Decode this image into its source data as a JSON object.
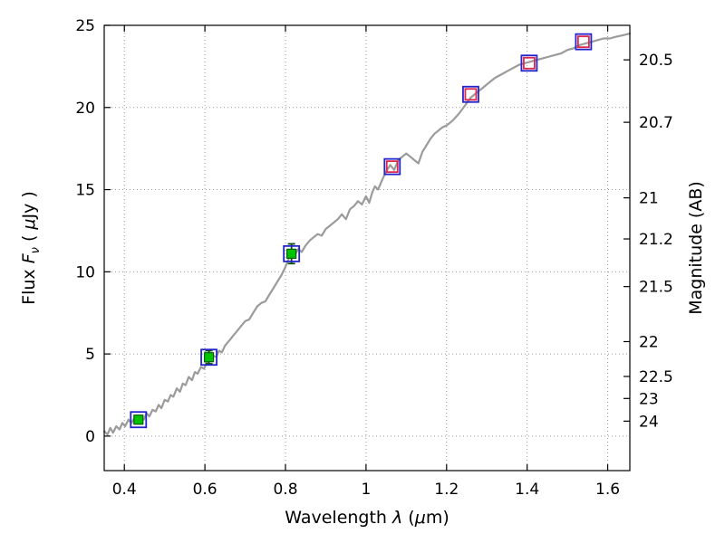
{
  "chart_data": {
    "type": "line",
    "title": "",
    "xlabel": "Wavelength λ (μm)",
    "xlabel_parts": [
      {
        "t": "Wavelength  ",
        "s": "n"
      },
      {
        "t": "λ",
        "s": "i"
      },
      {
        "t": " (",
        "s": "n"
      },
      {
        "t": "μ",
        "s": "i"
      },
      {
        "t": "m)",
        "s": "n"
      }
    ],
    "ylabel_left": "Flux Fν ( μJy )",
    "ylabel_left_parts": [
      {
        "t": "Flux  ",
        "s": "n"
      },
      {
        "t": "F",
        "s": "i"
      },
      {
        "t": "ν",
        "s": "sub"
      },
      {
        "t": "  ( ",
        "s": "n"
      },
      {
        "t": "μ",
        "s": "i"
      },
      {
        "t": "Jy )",
        "s": "n"
      }
    ],
    "ylabel_right": "Magnitude (AB)",
    "ylabel_right_parts": [
      {
        "t": "Magnitude (AB)",
        "s": "n"
      }
    ],
    "xlim": [
      0.35,
      1.655
    ],
    "ylim": [
      -2.1,
      25
    ],
    "grid": "dotted",
    "x_ticks": [
      0.4,
      0.6,
      0.8,
      1.0,
      1.2,
      1.4,
      1.6
    ],
    "x_tick_labels": [
      "0.4",
      "0.6",
      "0.8",
      "1",
      "1.2",
      "1.4",
      "1.6"
    ],
    "y_ticks_left": [
      0,
      5,
      10,
      15,
      20,
      25
    ],
    "y_tick_labels_left": [
      "0",
      "5",
      "10",
      "15",
      "20",
      "25"
    ],
    "right_axis_ticks": [
      {
        "label": "20.5",
        "flux": 22.9
      },
      {
        "label": "20.7",
        "flux": 19.1
      },
      {
        "label": "21",
        "flux": 14.5
      },
      {
        "label": "21.2",
        "flux": 12.0
      },
      {
        "label": "21.5",
        "flux": 9.1
      },
      {
        "label": "22",
        "flux": 5.75
      },
      {
        "label": "22.5",
        "flux": 3.63
      },
      {
        "label": "23",
        "flux": 2.29
      },
      {
        "label": "24",
        "flux": 0.91
      }
    ],
    "colors": {
      "spectrum": "#9b9b9b",
      "blue_square": "#2323cd",
      "red_square": "#dc2a4c",
      "green_square": "#00c400",
      "green_edge": "#0b5e0b",
      "error_bar": "#0a4d0a",
      "grid": "#999999",
      "axis": "#000000",
      "text": "#000000"
    },
    "series": [
      {
        "name": "model-spectrum",
        "kind": "line",
        "color": "#9b9b9b",
        "width": 2.2,
        "x": [
          0.35,
          0.358,
          0.365,
          0.372,
          0.38,
          0.388,
          0.395,
          0.402,
          0.41,
          0.418,
          0.425,
          0.432,
          0.44,
          0.448,
          0.455,
          0.462,
          0.47,
          0.478,
          0.485,
          0.492,
          0.5,
          0.508,
          0.515,
          0.522,
          0.53,
          0.538,
          0.545,
          0.552,
          0.56,
          0.568,
          0.575,
          0.582,
          0.59,
          0.598,
          0.605,
          0.612,
          0.62,
          0.628,
          0.635,
          0.642,
          0.65,
          0.66,
          0.67,
          0.68,
          0.69,
          0.7,
          0.71,
          0.72,
          0.73,
          0.74,
          0.75,
          0.76,
          0.77,
          0.78,
          0.79,
          0.8,
          0.81,
          0.818,
          0.825,
          0.832,
          0.84,
          0.85,
          0.86,
          0.87,
          0.88,
          0.89,
          0.9,
          0.91,
          0.92,
          0.93,
          0.94,
          0.95,
          0.96,
          0.97,
          0.98,
          0.99,
          1.0,
          1.008,
          1.015,
          1.022,
          1.03,
          1.04,
          1.05,
          1.06,
          1.07,
          1.08,
          1.09,
          1.1,
          1.11,
          1.12,
          1.13,
          1.14,
          1.15,
          1.16,
          1.17,
          1.18,
          1.19,
          1.2,
          1.215,
          1.23,
          1.245,
          1.26,
          1.275,
          1.29,
          1.305,
          1.32,
          1.335,
          1.35,
          1.365,
          1.38,
          1.395,
          1.41,
          1.425,
          1.44,
          1.455,
          1.47,
          1.485,
          1.5,
          1.515,
          1.53,
          1.545,
          1.56,
          1.575,
          1.59,
          1.605,
          1.62,
          1.638,
          1.655
        ],
        "y": [
          0.3,
          0.1,
          0.5,
          0.2,
          0.6,
          0.4,
          0.8,
          0.6,
          1.0,
          0.8,
          1.1,
          0.9,
          1.2,
          1.0,
          1.4,
          1.2,
          1.6,
          1.5,
          1.9,
          1.7,
          2.2,
          2.1,
          2.5,
          2.4,
          2.9,
          2.7,
          3.2,
          3.1,
          3.6,
          3.4,
          3.9,
          3.8,
          4.2,
          4.1,
          4.5,
          4.6,
          4.9,
          4.8,
          5.2,
          5.1,
          5.5,
          5.8,
          6.1,
          6.4,
          6.7,
          7.0,
          7.1,
          7.5,
          7.9,
          8.1,
          8.2,
          8.6,
          9.0,
          9.4,
          9.8,
          10.3,
          10.9,
          11.3,
          11.1,
          11.4,
          11.2,
          11.6,
          11.9,
          12.1,
          12.3,
          12.2,
          12.6,
          12.8,
          13.0,
          13.2,
          13.5,
          13.2,
          13.8,
          14.0,
          14.3,
          14.1,
          14.6,
          14.2,
          14.8,
          15.2,
          15.0,
          15.6,
          16.1,
          16.5,
          16.2,
          16.8,
          17.0,
          17.2,
          17.0,
          16.8,
          16.6,
          17.3,
          17.7,
          18.1,
          18.4,
          18.6,
          18.8,
          18.9,
          19.2,
          19.6,
          20.1,
          20.6,
          20.9,
          21.2,
          21.5,
          21.8,
          22.0,
          22.2,
          22.4,
          22.6,
          22.7,
          22.8,
          22.9,
          23.0,
          23.1,
          23.2,
          23.3,
          23.5,
          23.6,
          23.8,
          23.9,
          24.0,
          24.1,
          24.2,
          24.2,
          24.3,
          24.4,
          24.5
        ]
      },
      {
        "name": "synthetic-photometry-blue-squares",
        "kind": "scatter",
        "marker": "open-square",
        "color": "#2323cd",
        "size": 17,
        "stroke_width": 1.8,
        "x": [
          0.435,
          0.61,
          0.815,
          1.065,
          1.26,
          1.405,
          1.54
        ],
        "y": [
          1.0,
          4.8,
          11.1,
          16.4,
          20.8,
          22.7,
          24.0
        ]
      },
      {
        "name": "observed-photometry-green-squares",
        "kind": "scatter",
        "marker": "filled-square",
        "color": "#00c400",
        "edge": "#0b5e0b",
        "size": 10,
        "stroke_width": 1.2,
        "x": [
          0.435,
          0.61,
          0.815
        ],
        "y": [
          1.0,
          4.8,
          11.1
        ],
        "yerr": [
          0.25,
          0.4,
          0.6
        ],
        "error_color": "#0a4d0a"
      },
      {
        "name": "predicted-photometry-red-squares",
        "kind": "scatter",
        "marker": "open-square",
        "color": "#dc2a4c",
        "size": 12,
        "stroke_width": 1.8,
        "x": [
          1.065,
          1.26,
          1.405,
          1.54
        ],
        "y": [
          16.4,
          20.8,
          22.7,
          24.0
        ]
      }
    ]
  }
}
